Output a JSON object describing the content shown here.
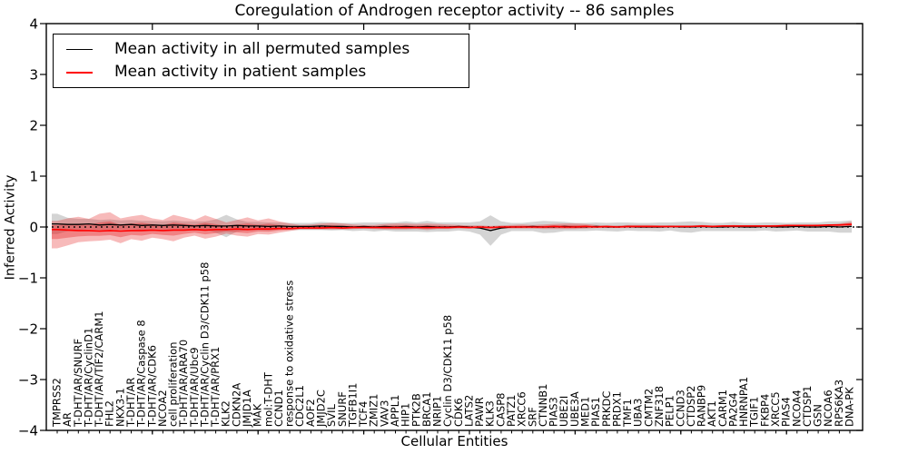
{
  "title": "Coregulation of Androgen receptor activity -- 86 samples",
  "legend": {
    "items": [
      {
        "label": "Mean activity in all permuted samples",
        "color": "#000000"
      },
      {
        "label": "Mean activity in patient samples",
        "color": "#ff0000"
      }
    ]
  },
  "axes": {
    "xlabel": "Cellular Entities",
    "ylabel": "Inferred Activity"
  },
  "chart_data": {
    "type": "line",
    "title": "Coregulation of Androgen receptor activity -- 86 samples",
    "xlabel": "Cellular Entities",
    "ylabel": "Inferred Activity",
    "ylim": [
      -4,
      4
    ],
    "yticks": [
      4,
      3,
      2,
      1,
      0,
      -1,
      -2,
      -3,
      -4
    ],
    "xticks_top": [
      10,
      20,
      30,
      40,
      50,
      60,
      70
    ],
    "grid": false,
    "legend_position": "upper left",
    "zero_line": {
      "style": "dotted",
      "color": "#000000",
      "y": 0
    },
    "categories": [
      "TMPRSS2",
      "AR",
      "T-DHT/AR/SNURF",
      "T-DHT/AR/CyclinD1",
      "T-DHT/AR/TIF2/CARM1",
      "FHL2",
      "NKX3-1",
      "T-DHT/AR",
      "T-DHT/AR/Caspase 8",
      "T-DHT/AR/CDK6",
      "NCOA2",
      "cell proliferation",
      "T-DHT/AR/ARA70",
      "T-DHT/AR/Ubc9",
      "T-DHT/AR/Cyclin D3/CDK11 p58",
      "T-DHT/AR/PRX1",
      "KLK2",
      "CDKN2A",
      "JMJD1A",
      "MAK",
      "mol:T-DHT",
      "CCND1",
      "response to oxidative stress",
      "CDC2L1",
      "AOF2",
      "JMJD2C",
      "SVIL",
      "SNURF",
      "TGFB1I1",
      "TCF4",
      "ZMIZ1",
      "VAV3",
      "APPL1",
      "HIP1",
      "PTK2B",
      "BRCA1",
      "NRIP1",
      "Cyclin D3/CDK11 p58",
      "CDK6",
      "LATS2",
      "PAWR",
      "KLK3",
      "CASP8",
      "PATZ1",
      "XRCC6",
      "SRF",
      "CTNNB1",
      "PIAS3",
      "UBE2I",
      "UBE3A",
      "MED1",
      "PIAS1",
      "PRKDC",
      "PRDX1",
      "TMF1",
      "UBA3",
      "CMTM2",
      "ZNF318",
      "PELP1",
      "CCND3",
      "CTDSP2",
      "RANBP9",
      "AKT1",
      "CARM1",
      "PA2G4",
      "HNRNPA1",
      "TGIF1",
      "FKBP4",
      "XRCC5",
      "PIAS4",
      "NCOA4",
      "CTDSP1",
      "GSN",
      "NCOA6",
      "RPS6KA3",
      "DNA-PK"
    ],
    "series": [
      {
        "name": "Mean activity in all permuted samples",
        "color": "#000000",
        "values": [
          0.06,
          0.05,
          0.05,
          0.06,
          0.04,
          0.05,
          0.04,
          0.05,
          0.03,
          0.04,
          0.03,
          0.04,
          0.03,
          0.02,
          0.03,
          0.02,
          0.02,
          0.03,
          0.02,
          0.02,
          0.01,
          0.02,
          0.01,
          0.01,
          0.01,
          0.02,
          0.01,
          0.01,
          0.0,
          0.01,
          0.0,
          0.01,
          0.0,
          0.01,
          0.0,
          0.01,
          0.0,
          0.0,
          0.01,
          0.0,
          -0.02,
          -0.07,
          -0.02,
          0.0,
          0.0,
          0.01,
          0.0,
          0.0,
          0.01,
          0.0,
          0.0,
          0.01,
          0.0,
          0.0,
          0.01,
          0.0,
          0.0,
          0.0,
          0.01,
          0.0,
          0.0,
          0.01,
          0.0,
          0.0,
          0.01,
          0.0,
          0.0,
          0.01,
          0.0,
          0.0,
          0.01,
          0.0,
          0.0,
          0.01,
          0.0,
          0.01
        ]
      },
      {
        "name": "Mean activity in patient samples",
        "color": "#ff0000",
        "values": [
          -0.05,
          -0.06,
          -0.07,
          -0.07,
          -0.08,
          -0.07,
          -0.08,
          -0.07,
          -0.07,
          -0.06,
          -0.07,
          -0.06,
          -0.06,
          -0.05,
          -0.06,
          -0.05,
          -0.05,
          -0.04,
          -0.05,
          -0.04,
          -0.04,
          -0.03,
          -0.03,
          -0.02,
          -0.02,
          -0.02,
          -0.01,
          -0.02,
          -0.01,
          -0.01,
          -0.01,
          -0.01,
          -0.01,
          -0.01,
          -0.01,
          -0.01,
          -0.01,
          -0.01,
          0.0,
          -0.01,
          0.0,
          -0.01,
          0.0,
          0.0,
          0.0,
          0.0,
          0.0,
          0.01,
          0.0,
          0.0,
          0.01,
          0.0,
          0.01,
          0.0,
          0.01,
          0.01,
          0.01,
          0.01,
          0.01,
          0.01,
          0.01,
          0.02,
          0.01,
          0.02,
          0.02,
          0.02,
          0.02,
          0.02,
          0.02,
          0.03,
          0.03,
          0.03,
          0.03,
          0.04,
          0.04,
          0.05
        ]
      }
    ],
    "bands": [
      {
        "name": "permuted-samples-band",
        "color": "#999999",
        "opacity": 0.42,
        "upper": [
          0.26,
          0.18,
          0.16,
          0.16,
          0.14,
          0.15,
          0.13,
          0.14,
          0.12,
          0.12,
          0.11,
          0.13,
          0.11,
          0.11,
          0.11,
          0.15,
          0.24,
          0.15,
          0.1,
          0.1,
          0.09,
          0.09,
          0.08,
          0.08,
          0.08,
          0.1,
          0.09,
          0.08,
          0.08,
          0.09,
          0.09,
          0.09,
          0.09,
          0.11,
          0.09,
          0.12,
          0.09,
          0.09,
          0.09,
          0.09,
          0.11,
          0.23,
          0.11,
          0.08,
          0.08,
          0.1,
          0.12,
          0.11,
          0.1,
          0.08,
          0.08,
          0.09,
          0.08,
          0.09,
          0.09,
          0.08,
          0.08,
          0.09,
          0.09,
          0.1,
          0.11,
          0.1,
          0.08,
          0.08,
          0.1,
          0.08,
          0.08,
          0.09,
          0.09,
          0.08,
          0.09,
          0.09,
          0.09,
          0.11,
          0.11,
          0.13
        ],
        "lower": [
          -0.14,
          -0.08,
          -0.06,
          -0.04,
          -0.06,
          -0.05,
          -0.05,
          -0.04,
          -0.06,
          -0.04,
          -0.05,
          -0.05,
          -0.05,
          -0.07,
          -0.05,
          -0.11,
          -0.2,
          -0.09,
          -0.06,
          -0.06,
          -0.07,
          -0.05,
          -0.06,
          -0.06,
          -0.06,
          -0.06,
          -0.07,
          -0.06,
          -0.08,
          -0.07,
          -0.09,
          -0.07,
          -0.09,
          -0.09,
          -0.09,
          -0.1,
          -0.09,
          -0.09,
          -0.07,
          -0.09,
          -0.15,
          -0.37,
          -0.15,
          -0.08,
          -0.08,
          -0.08,
          -0.12,
          -0.11,
          -0.08,
          -0.08,
          -0.08,
          -0.07,
          -0.08,
          -0.09,
          -0.07,
          -0.08,
          -0.08,
          -0.09,
          -0.07,
          -0.1,
          -0.11,
          -0.08,
          -0.08,
          -0.08,
          -0.08,
          -0.08,
          -0.08,
          -0.07,
          -0.09,
          -0.08,
          -0.07,
          -0.09,
          -0.09,
          -0.09,
          -0.11,
          -0.11
        ]
      },
      {
        "name": "patient-samples-band",
        "color": "#e41a1c",
        "opacity": 0.3,
        "core": {
          "series": 1,
          "scale": 0.5,
          "opacity": 0.35
        },
        "upper": [
          0.12,
          0.17,
          0.2,
          0.16,
          0.26,
          0.29,
          0.17,
          0.21,
          0.24,
          0.17,
          0.14,
          0.24,
          0.19,
          0.14,
          0.23,
          0.16,
          0.09,
          0.14,
          0.19,
          0.13,
          0.17,
          0.11,
          0.07,
          0.04,
          0.05,
          0.07,
          0.08,
          0.07,
          0.05,
          0.04,
          0.04,
          0.06,
          0.07,
          0.07,
          0.06,
          0.07,
          0.06,
          0.05,
          0.04,
          0.03,
          0.03,
          0.02,
          0.03,
          0.04,
          0.05,
          0.04,
          0.05,
          0.06,
          0.07,
          0.07,
          0.06,
          0.04,
          0.03,
          0.03,
          0.04,
          0.04,
          0.04,
          0.03,
          0.03,
          0.03,
          0.03,
          0.04,
          0.03,
          0.03,
          0.04,
          0.03,
          0.03,
          0.03,
          0.04,
          0.04,
          0.04,
          0.04,
          0.05,
          0.05,
          0.07,
          0.1
        ],
        "lower": [
          -0.42,
          -0.36,
          -0.3,
          -0.28,
          -0.27,
          -0.25,
          -0.32,
          -0.24,
          -0.27,
          -0.21,
          -0.24,
          -0.28,
          -0.21,
          -0.17,
          -0.23,
          -0.19,
          -0.13,
          -0.17,
          -0.19,
          -0.14,
          -0.15,
          -0.11,
          -0.08,
          -0.05,
          -0.05,
          -0.05,
          -0.05,
          -0.05,
          -0.04,
          -0.03,
          -0.04,
          -0.05,
          -0.05,
          -0.05,
          -0.04,
          -0.06,
          -0.04,
          -0.04,
          -0.03,
          -0.03,
          -0.03,
          -0.04,
          -0.03,
          -0.03,
          -0.03,
          -0.03,
          -0.04,
          -0.04,
          -0.04,
          -0.04,
          -0.03,
          -0.02,
          -0.02,
          -0.02,
          -0.02,
          -0.02,
          -0.02,
          -0.02,
          -0.01,
          -0.01,
          -0.01,
          -0.01,
          -0.01,
          -0.01,
          -0.01,
          -0.01,
          -0.01,
          0.0,
          0.0,
          0.0,
          0.0,
          0.0,
          0.0,
          0.01,
          0.01,
          0.01
        ]
      }
    ]
  }
}
